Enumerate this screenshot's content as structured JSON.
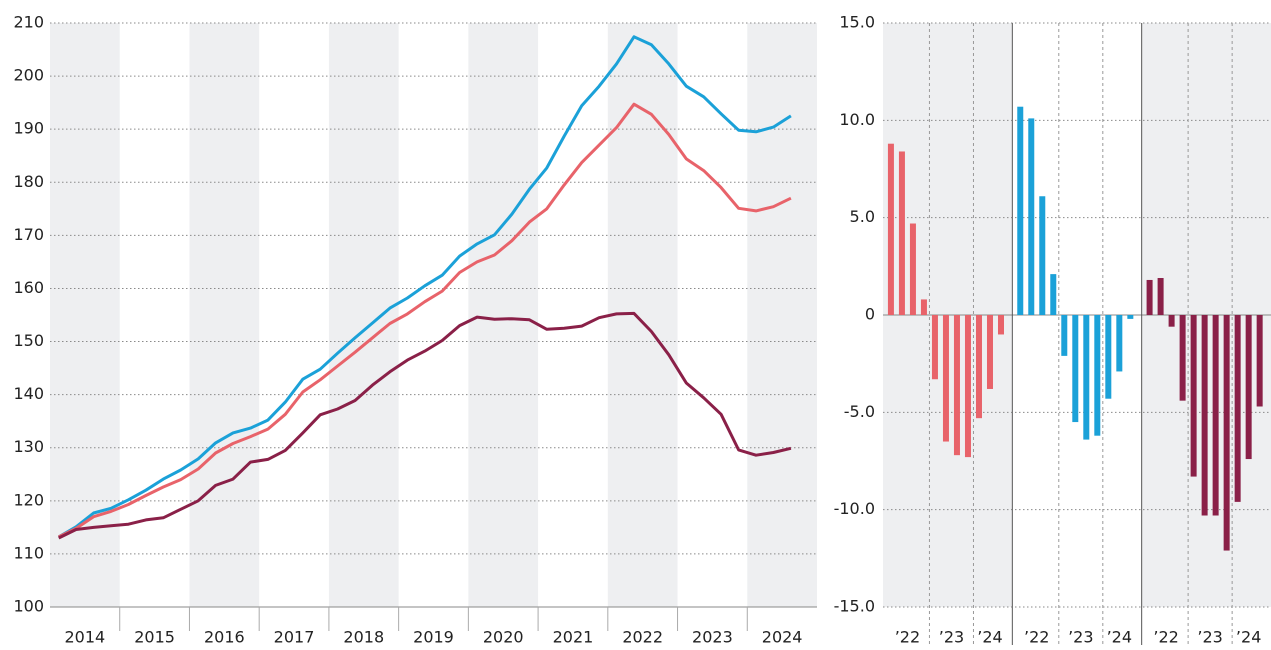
{
  "chart_data": [
    {
      "type": "line",
      "xlim": [
        2014,
        2025
      ],
      "xticks": [
        {
          "value": 2014.5,
          "label": "2014"
        },
        {
          "value": 2015.5,
          "label": "2015"
        },
        {
          "value": 2016.5,
          "label": "2016"
        },
        {
          "value": 2017.5,
          "label": "2017"
        },
        {
          "value": 2018.5,
          "label": "2018"
        },
        {
          "value": 2019.5,
          "label": "2019"
        },
        {
          "value": 2020.5,
          "label": "2020"
        },
        {
          "value": 2021.5,
          "label": "2021"
        },
        {
          "value": 2022.5,
          "label": "2022"
        },
        {
          "value": 2023.5,
          "label": "2023"
        },
        {
          "value": 2024.5,
          "label": "2024"
        }
      ],
      "ylim": [
        100,
        210
      ],
      "yticks": [
        100,
        110,
        120,
        130,
        140,
        150,
        160,
        170,
        180,
        190,
        200,
        210
      ],
      "grid": true,
      "bands": true,
      "x": [
        2014.125,
        2014.375,
        2014.625,
        2014.875,
        2015.125,
        2015.375,
        2015.625,
        2015.875,
        2016.125,
        2016.375,
        2016.625,
        2016.875,
        2017.125,
        2017.375,
        2017.625,
        2017.875,
        2018.125,
        2018.375,
        2018.625,
        2018.875,
        2019.125,
        2019.375,
        2019.625,
        2019.875,
        2020.125,
        2020.375,
        2020.625,
        2020.875,
        2021.125,
        2021.375,
        2021.625,
        2021.875,
        2022.125,
        2022.375,
        2022.625,
        2022.875,
        2023.125,
        2023.375,
        2023.625,
        2023.875,
        2024.125,
        2024.375,
        2024.625
      ],
      "series": [
        {
          "color": "#1ba1d8",
          "values": [
            113.2,
            115.1,
            117.7,
            118.6,
            120.2,
            122.0,
            124.1,
            125.8,
            127.9,
            130.9,
            132.8,
            133.7,
            135.2,
            138.6,
            142.9,
            144.8,
            147.8,
            150.7,
            153.5,
            156.3,
            158.2,
            160.5,
            162.5,
            166.1,
            168.4,
            170.1,
            174.0,
            178.7,
            182.7,
            188.7,
            194.4,
            198.1,
            202.3,
            207.4,
            205.9,
            202.3,
            198.1,
            196.1,
            192.9,
            189.8,
            189.5,
            190.4,
            192.5
          ]
        },
        {
          "color": "#e8636a",
          "values": [
            113.2,
            114.8,
            117.0,
            118.0,
            119.3,
            121.0,
            122.6,
            124.0,
            126.0,
            129.0,
            130.8,
            132.1,
            133.5,
            136.3,
            140.5,
            142.8,
            145.4,
            148.0,
            150.7,
            153.4,
            155.2,
            157.5,
            159.5,
            163.0,
            165.0,
            166.3,
            169.0,
            172.5,
            175.0,
            179.5,
            183.7,
            187.0,
            190.3,
            194.7,
            192.8,
            189.0,
            184.4,
            182.2,
            179.0,
            175.1,
            174.6,
            175.4,
            177.0
          ]
        },
        {
          "color": "#8a2048",
          "values": [
            113.0,
            114.6,
            115.0,
            115.3,
            115.6,
            116.4,
            116.8,
            118.4,
            120.0,
            122.9,
            124.1,
            127.3,
            127.8,
            129.5,
            132.8,
            136.2,
            137.3,
            138.9,
            141.8,
            144.3,
            146.5,
            148.2,
            150.2,
            153.0,
            154.6,
            154.2,
            154.3,
            154.1,
            152.3,
            152.5,
            152.9,
            154.5,
            155.2,
            155.3,
            151.9,
            147.5,
            142.2,
            139.4,
            136.3,
            129.6,
            128.6,
            129.1,
            129.9
          ]
        }
      ]
    },
    {
      "type": "bar",
      "panels": true,
      "bands": true,
      "grid": true,
      "categories": [
        "’22",
        null,
        null,
        null,
        "’23",
        null,
        null,
        null,
        "’24",
        null,
        null
      ],
      "ylim": [
        -15,
        15
      ],
      "yticks": [
        {
          "value": -15,
          "label": "-15.0"
        },
        {
          "value": -10,
          "label": "-10.0"
        },
        {
          "value": -5,
          "label": "-5.0"
        },
        0,
        {
          "value": 5,
          "label": "5.0"
        },
        {
          "value": 10,
          "label": "10.0"
        },
        {
          "value": 15,
          "label": "15.0"
        }
      ],
      "series": [
        {
          "color": "#e8636a",
          "values": [
            8.8,
            8.4,
            4.7,
            0.8,
            -3.3,
            -6.5,
            -7.2,
            -7.3,
            -5.3,
            -3.8,
            -1.0
          ]
        },
        {
          "color": "#1ba1d8",
          "values": [
            10.7,
            10.1,
            6.1,
            2.1,
            -2.1,
            -5.5,
            -6.4,
            -6.2,
            -4.3,
            -2.9,
            -0.2
          ]
        },
        {
          "color": "#8a2048",
          "values": [
            1.8,
            1.9,
            -0.6,
            -4.4,
            -8.3,
            -10.3,
            -10.3,
            -12.1,
            -9.6,
            -7.4,
            -4.7
          ]
        }
      ]
    }
  ]
}
